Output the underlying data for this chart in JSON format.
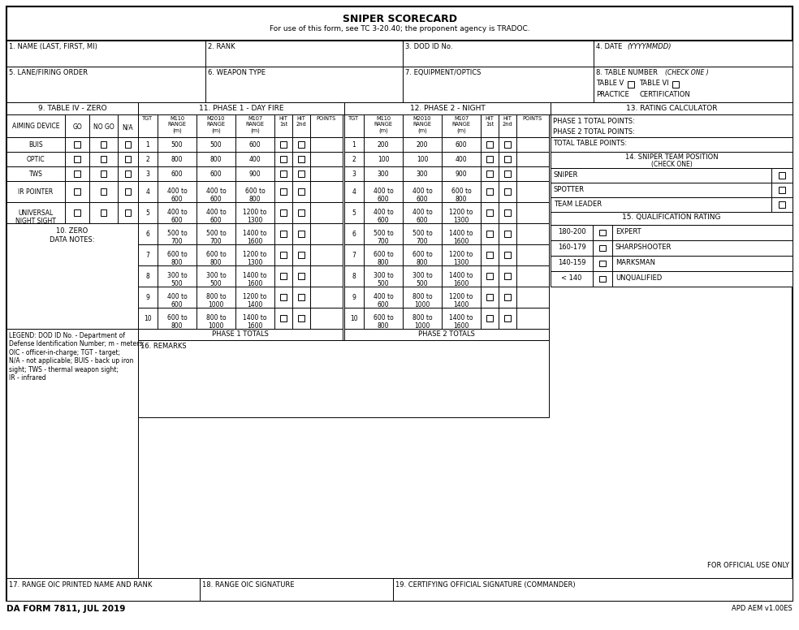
{
  "title": "SNIPER SCORECARD",
  "subtitle": "For use of this form, see TC 3-20.40; the proponent agency is TRADOC.",
  "form_number": "DA FORM 7811, JUL 2019",
  "apd": "APD AEM v1.00ES",
  "fields_row1": [
    "1. NAME (LAST, FIRST, MI)",
    "2. RANK",
    "3. DOD ID No.",
    "4. DATE  (YYYYMMDD)"
  ],
  "fields_row2": [
    "5. LANE/FIRING ORDER",
    "6. WEAPON TYPE",
    "7. EQUIPMENT/OPTICS",
    "8. TABLE NUMBER  (CHECK ONE )"
  ],
  "section9_title": "9. TABLE IV - ZERO",
  "section11_title": "11. PHASE 1 - DAY FIRE",
  "section12_title": "12. PHASE 2 - NIGHT",
  "section13_title": "13. RATING CALCULATOR",
  "aiming_devices": [
    "BUIS",
    "OPTIC",
    "TWS",
    "IR POINTER",
    "UNIVERSAL\nNIGHT SIGHT"
  ],
  "phase1_data": [
    [
      1,
      "500",
      "500",
      "600"
    ],
    [
      2,
      "800",
      "800",
      "400"
    ],
    [
      3,
      "600",
      "600",
      "900"
    ],
    [
      4,
      "400 to\n600",
      "400 to\n600",
      "600 to\n800"
    ],
    [
      5,
      "400 to\n600",
      "400 to\n600",
      "1200 to\n1300"
    ],
    [
      6,
      "500 to\n700",
      "500 to\n700",
      "1400 to\n1600"
    ],
    [
      7,
      "600 to\n800",
      "600 to\n800",
      "1200 to\n1300"
    ],
    [
      8,
      "300 to\n500",
      "300 to\n500",
      "1400 to\n1600"
    ],
    [
      9,
      "400 to\n600",
      "800 to\n1000",
      "1200 to\n1400"
    ],
    [
      10,
      "600 to\n800",
      "800 to\n1000",
      "1400 to\n1600"
    ]
  ],
  "phase2_data": [
    [
      1,
      "200",
      "200",
      "600"
    ],
    [
      2,
      "100",
      "100",
      "400"
    ],
    [
      3,
      "300",
      "300",
      "900"
    ],
    [
      4,
      "400 to\n600",
      "400 to\n600",
      "600 to\n800"
    ],
    [
      5,
      "400 to\n600",
      "400 to\n600",
      "1200 to\n1300"
    ],
    [
      6,
      "500 to\n700",
      "500 to\n700",
      "1400 to\n1600"
    ],
    [
      7,
      "600 to\n800",
      "600 to\n800",
      "1200 to\n1300"
    ],
    [
      8,
      "300 to\n500",
      "300 to\n500",
      "1400 to\n1600"
    ],
    [
      9,
      "400 to\n600",
      "800 to\n1000",
      "1200 to\n1400"
    ],
    [
      10,
      "600 to\n800",
      "800 to\n1000",
      "1400 to\n1600"
    ]
  ],
  "rating_labels": [
    "PHASE 1 TOTAL POINTS:",
    "PHASE 2 TOTAL POINTS:",
    "TOTAL TABLE POINTS:"
  ],
  "team_positions": [
    "SNIPER",
    "SPOTTER",
    "TEAM LEADER"
  ],
  "qual_ratings": [
    [
      "180-200",
      "EXPERT"
    ],
    [
      "160-179",
      "SHARPSHOOTER"
    ],
    [
      "140-159",
      "MARKSMAN"
    ],
    [
      "< 140",
      "UNQUALIFIED"
    ]
  ],
  "legend_text": "LEGEND: DOD ID No. - Department of\nDefense Identification Number; m - meters;\nOIC - officer-in-charge; TGT - target;\nN/A - not applicable; BUIS - back up iron\nsight; TWS - thermal weapon sight;\nIR - infrared",
  "remarks_label": "16. REMARKS",
  "range_oic": "17. RANGE OIC PRINTED NAME AND RANK",
  "range_sig": "18. RANGE OIC SIGNATURE",
  "cert_sig": "19. CERTIFYING OFFICIAL SIGNATURE (COMMANDER)",
  "official_use": "FOR OFFICIAL USE ONLY",
  "bg_color": "#ffffff"
}
